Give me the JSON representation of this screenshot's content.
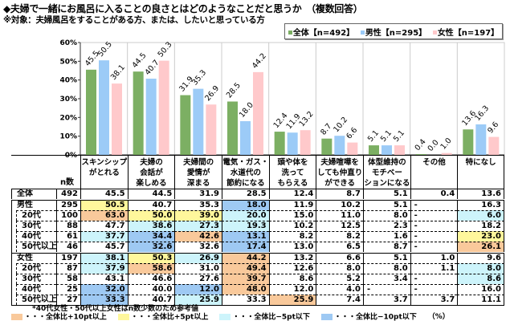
{
  "title": "◆夫婦で一緒にお風呂に入ることの良さとはどのようなことだと思うか　（複数回答）",
  "subtitle": "※対象：夫婦風呂をすることがある方、または、したいと思っている方",
  "colors": {
    "overall": "#7caf63",
    "male": "#9ccbf7",
    "female": "#ffc9cb",
    "plus10": "#f9c99b",
    "plus5": "#fff79c",
    "minus5": "#cdf4fb",
    "minus10": "#9ec9f3"
  },
  "chart_data": {
    "type": "bar",
    "categories": [
      "スキンシップ\nがとれる",
      "夫婦の\n会話が\n楽しめる",
      "夫婦間の\n愛情が\n深まる",
      "電気・ガス・\n水道代の\n節約になる",
      "頭や体を\n洗って\nもらえる",
      "夫婦喧嘩を\nしても仲直り\nができる",
      "体型維持の\nモチベー\nションになる",
      "その他",
      "特になし"
    ],
    "series": [
      {
        "name": "全体【n=492】",
        "values": [
          45.5,
          44.5,
          31.9,
          28.5,
          12.4,
          8.7,
          5.1,
          0.4,
          13.6
        ]
      },
      {
        "name": "男性【n=295】",
        "values": [
          50.5,
          40.7,
          35.3,
          18.0,
          11.9,
          10.2,
          5.1,
          0.0,
          16.3
        ]
      },
      {
        "name": "女性【n=197】",
        "values": [
          38.1,
          50.3,
          26.9,
          44.2,
          13.2,
          6.6,
          5.1,
          1.0,
          9.6
        ]
      }
    ],
    "ylim": [
      0,
      60
    ],
    "yticks": [
      "0%",
      "10%",
      "20%",
      "30%",
      "40%",
      "50%",
      "60%"
    ],
    "grid": true,
    "legend_placement": "top-right"
  },
  "table": {
    "n_header": "n数",
    "rows": [
      {
        "label": "全体",
        "n": "492",
        "values": [
          "45.5",
          "44.5",
          "31.9",
          "28.5",
          "12.4",
          "8.7",
          "5.1",
          "0.4",
          "13.6"
        ],
        "hl": [
          "",
          "",
          "",
          "",
          "",
          "",
          "",
          "",
          ""
        ]
      },
      {
        "label": "男性",
        "n": "295",
        "values": [
          "50.5",
          "40.7",
          "35.3",
          "18.0",
          "11.9",
          "10.2",
          "5.1",
          "-",
          "16.3"
        ],
        "hl": [
          "y",
          "",
          "",
          "b",
          "",
          "",
          "",
          "",
          ""
        ]
      },
      {
        "label": "20代",
        "n": "100",
        "values": [
          "63.0",
          "50.0",
          "39.0",
          "20.0",
          "15.0",
          "11.0",
          "8.0",
          "-",
          "6.0"
        ],
        "hl": [
          "o",
          "y",
          "y",
          "c",
          "",
          "",
          "",
          "",
          "c"
        ]
      },
      {
        "label": "30代",
        "n": "88",
        "values": [
          "47.7",
          "38.6",
          "27.3",
          "19.3",
          "10.2",
          "12.5",
          "2.3",
          "-",
          "18.2"
        ],
        "hl": [
          "",
          "c",
          "c",
          "c",
          "",
          "",
          "",
          "",
          ""
        ]
      },
      {
        "label": "40代",
        "n": "61",
        "values": [
          "37.7",
          "34.4",
          "42.6",
          "13.1",
          "8.2",
          "8.2",
          "1.6",
          "-",
          "23.0"
        ],
        "hl": [
          "c",
          "b",
          "o",
          "b",
          "",
          "",
          "",
          "",
          "y"
        ]
      },
      {
        "label": "50代以上",
        "n": "46",
        "values": [
          "45.7",
          "32.6",
          "32.6",
          "17.4",
          "13.0",
          "6.5",
          "8.7",
          "-",
          "26.1"
        ],
        "hl": [
          "",
          "b",
          "",
          "b",
          "",
          "",
          "",
          "",
          "o"
        ]
      },
      {
        "label": "女性",
        "n": "197",
        "values": [
          "38.1",
          "50.3",
          "26.9",
          "44.2",
          "13.2",
          "6.6",
          "5.1",
          "1.0",
          "9.6"
        ],
        "hl": [
          "c",
          "y",
          "c",
          "o",
          "",
          "",
          "",
          "",
          ""
        ]
      },
      {
        "label": "20代",
        "n": "87",
        "values": [
          "37.9",
          "58.6",
          "31.0",
          "49.4",
          "12.6",
          "8.0",
          "8.0",
          "1.1",
          "8.0"
        ],
        "hl": [
          "c",
          "o",
          "",
          "o",
          "",
          "",
          "",
          "",
          "c"
        ]
      },
      {
        "label": "30代",
        "n": "58",
        "values": [
          "43.1",
          "46.6",
          "27.6",
          "39.7",
          "8.6",
          "5.2",
          "3.4",
          "-",
          "8.6"
        ],
        "hl": [
          "",
          "",
          "",
          "o",
          "",
          "",
          "",
          "",
          "c"
        ]
      },
      {
        "label": "40代",
        "n": "25",
        "values": [
          "32.0",
          "40.0",
          "12.0",
          "48.0",
          "12.0",
          "4.0",
          "-",
          "-",
          "16.0"
        ],
        "hl": [
          "b",
          "",
          "b",
          "o",
          "",
          "",
          "",
          "",
          ""
        ]
      },
      {
        "label": "50代以上",
        "n": "27",
        "values": [
          "33.3",
          "40.7",
          "25.9",
          "33.3",
          "25.9",
          "7.4",
          "3.7",
          "3.7",
          "11.1"
        ],
        "hl": [
          "b",
          "",
          "c",
          "",
          "o",
          "",
          "",
          "",
          ""
        ]
      }
    ]
  },
  "footer": {
    "note": "*40代女性・50代以上女性はn数少数のため参考値",
    "plus10": "・・・全体比+10pt以上",
    "plus5": "・・・全体比+5pt以上",
    "minus5": "・・・全体比−5pt以下",
    "minus10": "・・・全体比−10pt以下",
    "unit": "（%）"
  }
}
